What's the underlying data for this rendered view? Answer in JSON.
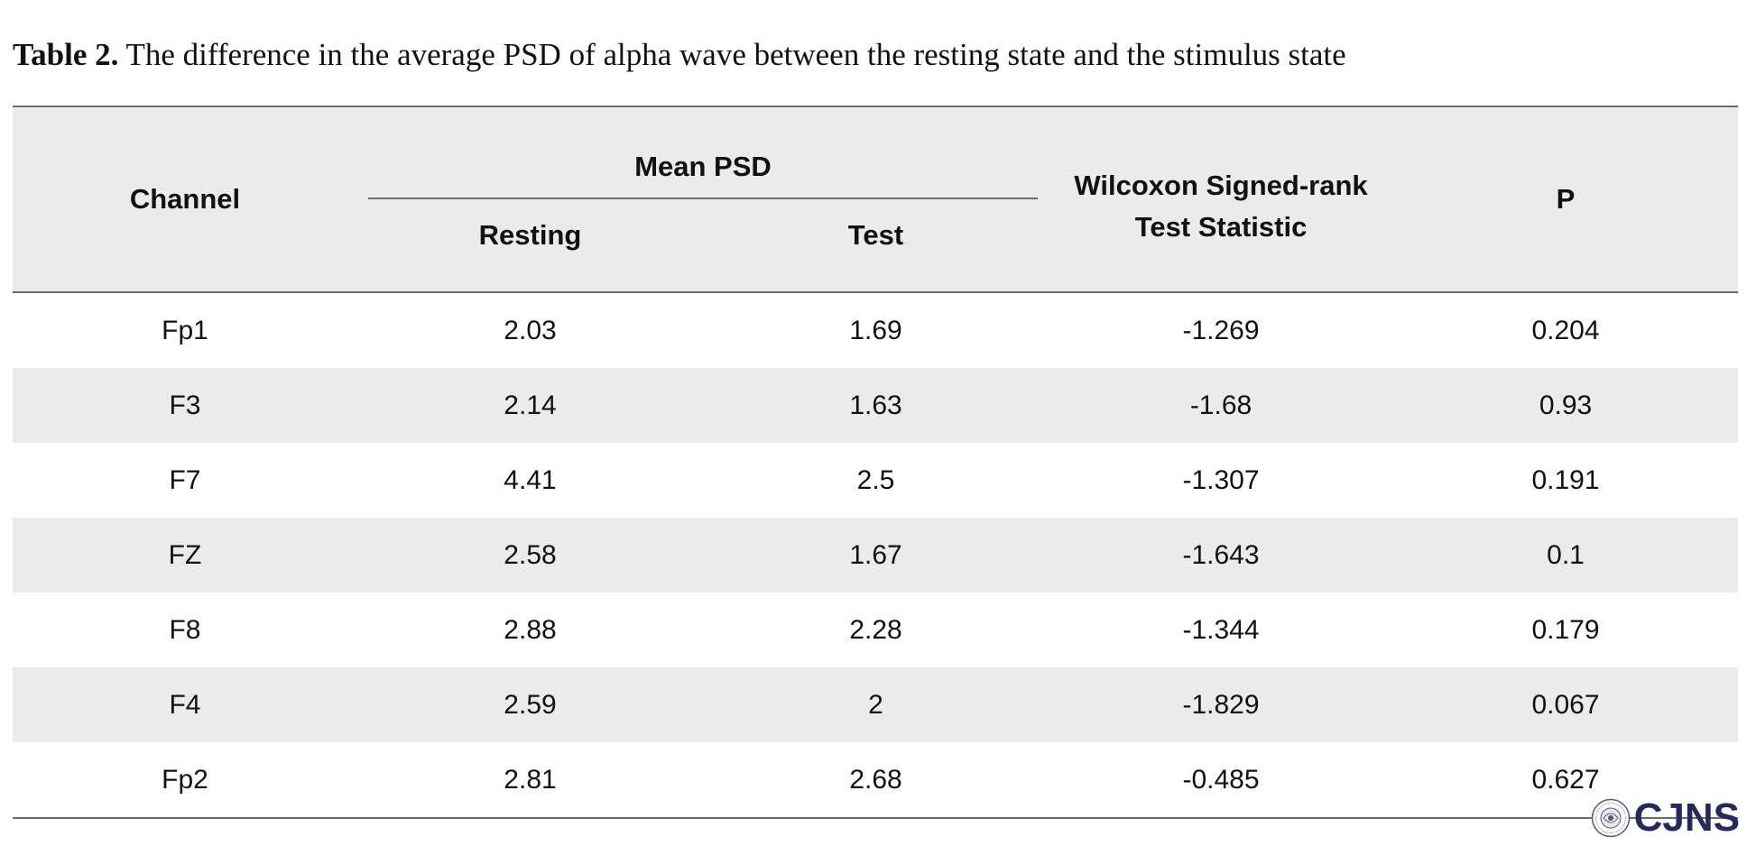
{
  "caption": {
    "label": "Table 2.",
    "text": " The difference in the average PSD of alpha wave between the resting state and the stimulus state"
  },
  "table": {
    "headers": {
      "channel": "Channel",
      "mean_psd": "Mean PSD",
      "resting": "Resting",
      "test": "Test",
      "wilcoxon_line1": "Wilcoxon Signed-rank",
      "wilcoxon_line2": "Test Statistic",
      "p": "P"
    },
    "rows": [
      {
        "channel": "Fp1",
        "resting": "2.03",
        "test": "1.69",
        "wilcoxon": "-1.269",
        "p": "0.204"
      },
      {
        "channel": "F3",
        "resting": "2.14",
        "test": "1.63",
        "wilcoxon": "-1.68",
        "p": "0.93"
      },
      {
        "channel": "F7",
        "resting": "4.41",
        "test": "2.5",
        "wilcoxon": "-1.307",
        "p": "0.191"
      },
      {
        "channel": "FZ",
        "resting": "2.58",
        "test": "1.67",
        "wilcoxon": "-1.643",
        "p": "0.1"
      },
      {
        "channel": "F8",
        "resting": "2.88",
        "test": "2.28",
        "wilcoxon": "-1.344",
        "p": "0.179"
      },
      {
        "channel": "F4",
        "resting": "2.59",
        "test": "2",
        "wilcoxon": "-1.829",
        "p": "0.067"
      },
      {
        "channel": "Fp2",
        "resting": "2.81",
        "test": "2.68",
        "wilcoxon": "-0.485",
        "p": "0.627"
      }
    ]
  },
  "logo": {
    "text": "CJNS",
    "color": "#26295b",
    "icon": "journal-seal-icon"
  },
  "colors": {
    "row_shade": "#ebebeb",
    "rule": "#6b6b6b"
  }
}
